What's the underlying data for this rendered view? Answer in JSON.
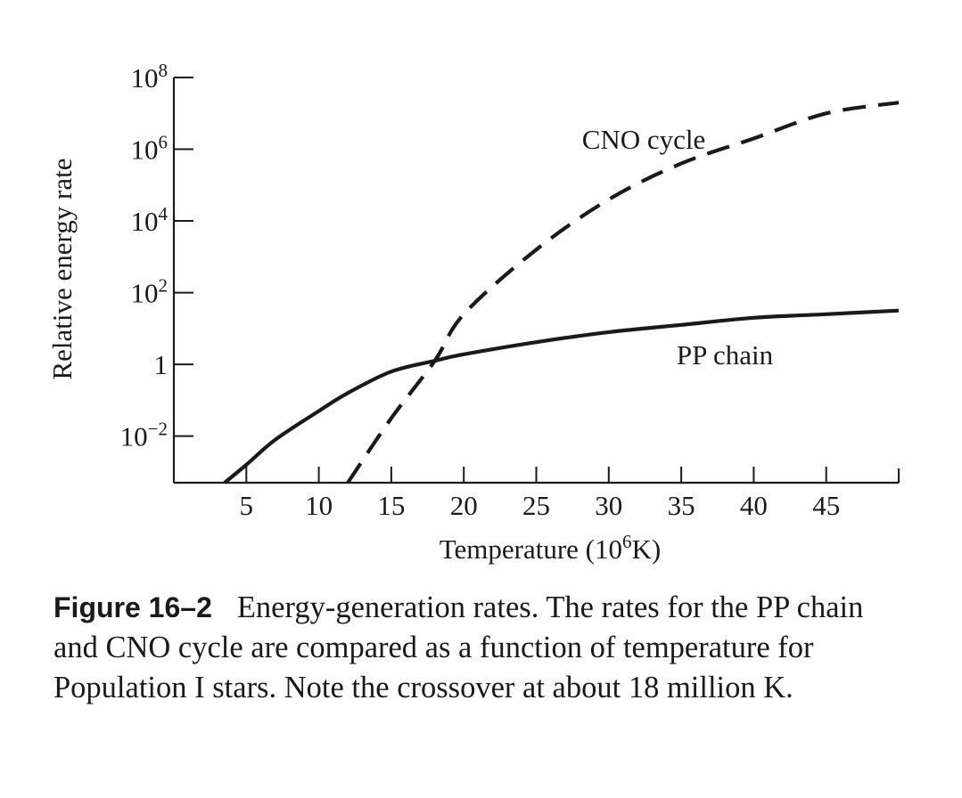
{
  "chart_data": {
    "type": "line",
    "xlabel": "Temperature (10",
    "xlabel_sup": "6",
    "xlabel_tail": "K)",
    "ylabel": "Relative energy rate",
    "y_scale": "log",
    "xlim": [
      0,
      50
    ],
    "ylim_log10": [
      -3.3,
      8
    ],
    "x_ticks": [
      5,
      10,
      15,
      20,
      25,
      30,
      35,
      40,
      45
    ],
    "x_tick_labels": [
      "5",
      "10",
      "15",
      "20",
      "25",
      "30",
      "35",
      "40",
      "45"
    ],
    "y_ticks": [
      {
        "exp": 8,
        "base": "10",
        "sup": "8"
      },
      {
        "exp": 6,
        "base": "10",
        "sup": "6"
      },
      {
        "exp": 4,
        "base": "10",
        "sup": "4"
      },
      {
        "exp": 2,
        "base": "10",
        "sup": "2"
      },
      {
        "exp": 0,
        "base": "1",
        "sup": ""
      },
      {
        "exp": -2,
        "base": "10",
        "sup": "−2"
      }
    ],
    "grid": false,
    "series": [
      {
        "name": "PP chain",
        "style": "solid",
        "x": [
          3.5,
          5,
          7,
          10,
          12,
          15,
          18,
          20,
          25,
          30,
          35,
          40,
          45,
          50
        ],
        "log10_y": [
          -3.3,
          -2.8,
          -2.1,
          -1.3,
          -0.8,
          -0.2,
          0.1,
          0.28,
          0.62,
          0.9,
          1.1,
          1.3,
          1.4,
          1.5
        ]
      },
      {
        "name": "CNO cycle",
        "style": "dashed",
        "x": [
          12,
          15,
          18,
          20,
          25,
          30,
          35,
          40,
          45,
          50
        ],
        "log10_y": [
          -3.3,
          -1.5,
          0.1,
          1.4,
          3.2,
          4.6,
          5.6,
          6.3,
          7.0,
          7.3
        ]
      }
    ],
    "annotations": [
      {
        "text": "CNO cycle",
        "series": "CNO cycle"
      },
      {
        "text": "PP chain",
        "series": "PP chain"
      }
    ]
  },
  "caption": {
    "figure_number": "Figure 16–2",
    "text": "Energy-generation rates. The rates for the PP chain and CNO cycle are compared as a function of temperature for Population I stars. Note the crossover at about 18 million K."
  }
}
